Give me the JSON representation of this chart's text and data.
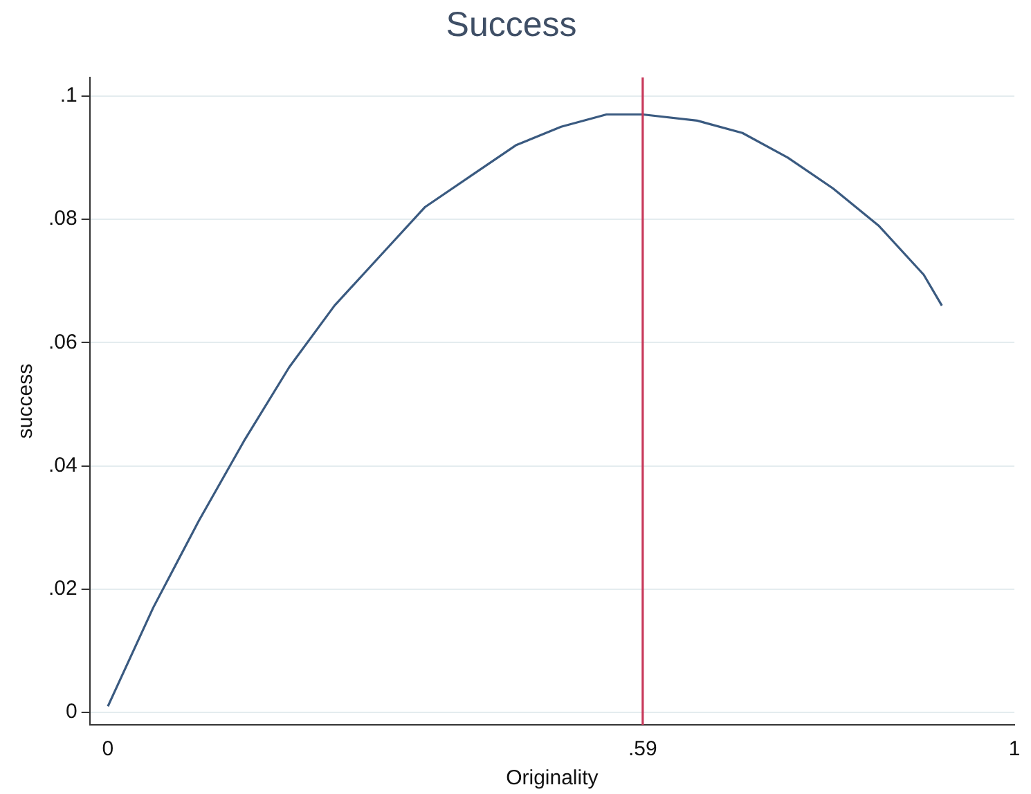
{
  "chart_data": {
    "type": "line",
    "title": "Success",
    "xlabel": "Originality",
    "ylabel": "success",
    "x": [
      0,
      0.05,
      0.1,
      0.15,
      0.2,
      0.25,
      0.3,
      0.35,
      0.4,
      0.45,
      0.5,
      0.55,
      0.59,
      0.65,
      0.7,
      0.75,
      0.8,
      0.85,
      0.9,
      0.92
    ],
    "series": [
      {
        "color": "#3a5a80",
        "values": [
          0.001,
          0.017,
          0.031,
          0.044,
          0.056,
          0.066,
          0.074,
          0.082,
          0.087,
          0.092,
          0.095,
          0.097,
          0.097,
          0.096,
          0.094,
          0.09,
          0.085,
          0.079,
          0.071,
          0.066
        ]
      }
    ],
    "xlim": [
      -0.02,
      1
    ],
    "xticks": [
      0,
      {
        "value": 0.59,
        "label": ".59"
      },
      1
    ],
    "ylim": [
      -0.002,
      0.103
    ],
    "yticks": [
      0,
      {
        "value": 0.02,
        "label": ".02"
      },
      {
        "value": 0.04,
        "label": ".04"
      },
      {
        "value": 0.06,
        "label": ".06"
      },
      {
        "value": 0.08,
        "label": ".08"
      },
      {
        "value": 0.1,
        "label": ".1"
      }
    ],
    "ref_lines": [
      {
        "axis": "x",
        "value": 0.59,
        "color": "#c8385a"
      }
    ],
    "grid": "y",
    "legend": false,
    "marker": "none",
    "line_style": "solid"
  }
}
